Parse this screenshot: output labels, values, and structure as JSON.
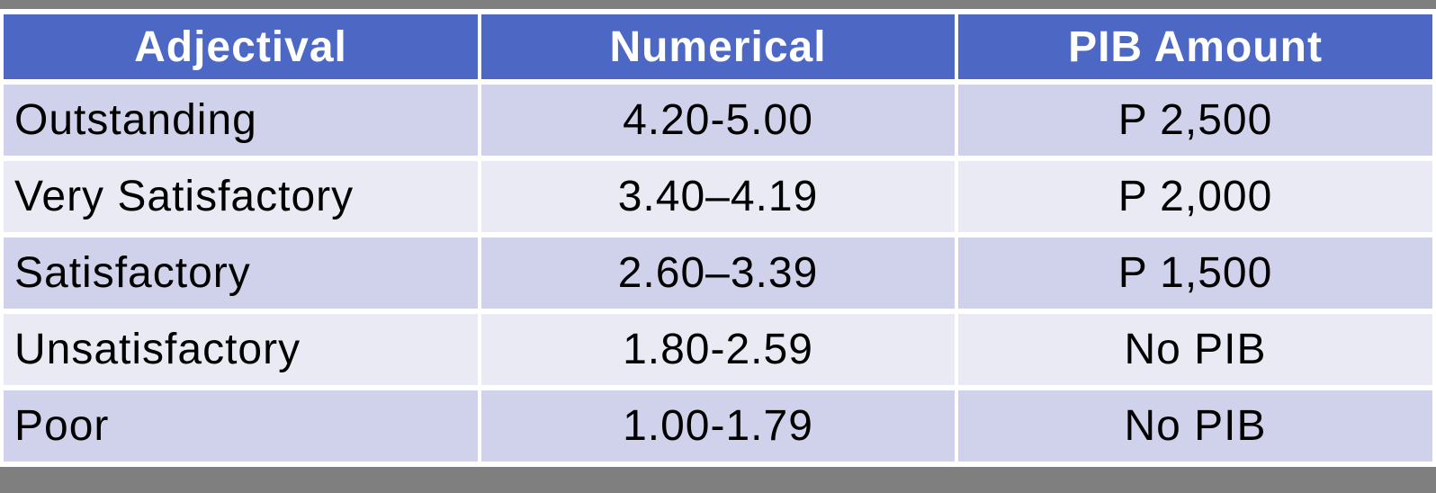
{
  "slide": {
    "background_color": "#7f7f7f",
    "gridline_color": "#ffffff"
  },
  "table": {
    "header": {
      "background_color": "#4c68c4",
      "text_color": "#ffffff",
      "columns": [
        "Adjectival",
        "Numerical",
        "PIB Amount"
      ]
    },
    "band_colors": {
      "odd_rows": "#d0d2ec",
      "even_rows": "#e9eaf4"
    },
    "text_color": "#000000",
    "rows": [
      {
        "adjectival": "Outstanding",
        "numerical": "4.20-5.00",
        "pib_amount": "P 2,500"
      },
      {
        "adjectival": "Very Satisfactory",
        "numerical": "3.40–4.19",
        "pib_amount": "P 2,000"
      },
      {
        "adjectival": "Satisfactory",
        "numerical": "2.60–3.39",
        "pib_amount": "P 1,500"
      },
      {
        "adjectival": "Unsatisfactory",
        "numerical": "1.80-2.59",
        "pib_amount": "No PIB"
      },
      {
        "adjectival": "Poor",
        "numerical": "1.00-1.79",
        "pib_amount": "No PIB"
      }
    ]
  }
}
